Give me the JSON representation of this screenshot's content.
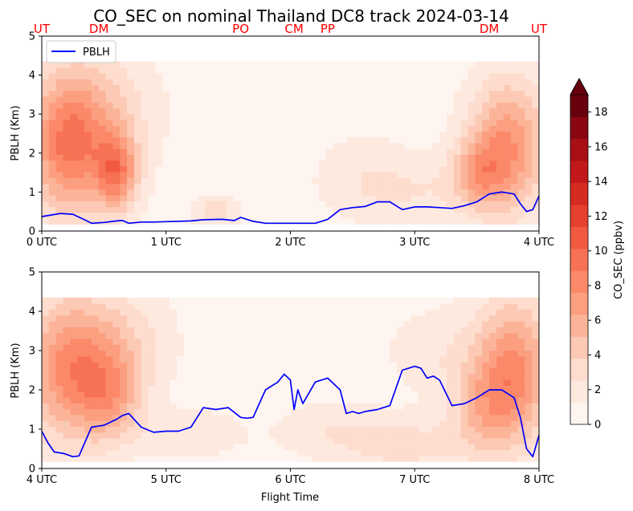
{
  "title": "CO_SEC on nominal Thailand DC8 track 2024-03-14",
  "colors": {
    "pblh_line": "#0000ff",
    "site_label": "#ff0000",
    "colormap": [
      "#fff5f0",
      "#fee9df",
      "#fedcce",
      "#fcc9b4",
      "#fcb499",
      "#fc9f81",
      "#fb8969",
      "#f77254",
      "#f15a40",
      "#e6402f",
      "#d52b21",
      "#c2181b",
      "#a81016",
      "#8a0712",
      "#67000d"
    ]
  },
  "chart_data": [
    {
      "type": "contour",
      "panel": "top",
      "ylabel": "PBLH (Km)",
      "xlabel": "",
      "xlim": [
        0,
        4
      ],
      "ylim": [
        0,
        5
      ],
      "x_ticks": [
        "0 UTC",
        "1 UTC",
        "2 UTC",
        "3 UTC",
        "4 UTC"
      ],
      "y_ticks": [
        "0",
        "1",
        "2",
        "3",
        "4",
        "5"
      ],
      "legend": {
        "position": "top-left",
        "entries": [
          "PBLH"
        ]
      },
      "site_labels": [
        {
          "label": "UT",
          "x": 0.0
        },
        {
          "label": "DM",
          "x": 0.46
        },
        {
          "label": "PO",
          "x": 1.6
        },
        {
          "label": "CM",
          "x": 2.03
        },
        {
          "label": "PP",
          "x": 2.3
        },
        {
          "label": "DM",
          "x": 3.6
        },
        {
          "label": "UT",
          "x": 4.0
        }
      ],
      "pblh": {
        "name": "PBLH",
        "x": [
          0,
          0.15,
          0.25,
          0.35,
          0.4,
          0.5,
          0.6,
          0.65,
          0.7,
          0.8,
          0.9,
          1.0,
          1.2,
          1.3,
          1.45,
          1.55,
          1.6,
          1.7,
          1.8,
          1.9,
          2.0,
          2.1,
          2.2,
          2.3,
          2.4,
          2.5,
          2.6,
          2.7,
          2.8,
          2.9,
          3.0,
          3.1,
          3.2,
          3.3,
          3.4,
          3.5,
          3.6,
          3.7,
          3.8,
          3.85,
          3.9,
          3.95,
          4.0
        ],
        "y": [
          0.37,
          0.45,
          0.43,
          0.28,
          0.2,
          0.22,
          0.26,
          0.27,
          0.2,
          0.23,
          0.23,
          0.24,
          0.26,
          0.29,
          0.3,
          0.27,
          0.35,
          0.25,
          0.2,
          0.2,
          0.2,
          0.2,
          0.2,
          0.3,
          0.55,
          0.6,
          0.63,
          0.75,
          0.75,
          0.55,
          0.62,
          0.62,
          0.6,
          0.58,
          0.65,
          0.75,
          0.95,
          1.0,
          0.95,
          0.7,
          0.5,
          0.55,
          0.9
        ]
      },
      "field_blobs": [
        {
          "x": 0.2,
          "y": 2.2,
          "sx": 0.22,
          "sy": 1.3,
          "amp": 7.5
        },
        {
          "x": 0.6,
          "y": 1.5,
          "sx": 0.12,
          "sy": 0.7,
          "amp": 7.0
        },
        {
          "x": 0.5,
          "y": 3.0,
          "sx": 0.3,
          "sy": 1.2,
          "amp": 3.0
        },
        {
          "x": 1.4,
          "y": 0.5,
          "sx": 0.12,
          "sy": 0.25,
          "amp": 3.0
        },
        {
          "x": 3.75,
          "y": 2.2,
          "sx": 0.22,
          "sy": 1.2,
          "amp": 7.0
        },
        {
          "x": 3.5,
          "y": 1.5,
          "sx": 0.15,
          "sy": 0.6,
          "amp": 4.0
        },
        {
          "x": 3.0,
          "y": 1.0,
          "sx": 0.4,
          "sy": 0.6,
          "amp": 1.6
        },
        {
          "x": 2.6,
          "y": 1.5,
          "sx": 0.3,
          "sy": 0.8,
          "amp": 1.2
        }
      ]
    },
    {
      "type": "contour",
      "panel": "bottom",
      "ylabel": "PBLH (Km)",
      "xlabel": "Flight Time",
      "xlim": [
        4,
        8
      ],
      "ylim": [
        0,
        5
      ],
      "x_ticks": [
        "4 UTC",
        "5 UTC",
        "6 UTC",
        "7 UTC",
        "8 UTC"
      ],
      "y_ticks": [
        "0",
        "1",
        "2",
        "3",
        "4",
        "5"
      ],
      "pblh": {
        "name": "PBLH",
        "x": [
          4.0,
          4.05,
          4.1,
          4.18,
          4.25,
          4.3,
          4.4,
          4.5,
          4.6,
          4.65,
          4.7,
          4.8,
          4.9,
          5.0,
          5.1,
          5.2,
          5.3,
          5.4,
          5.5,
          5.6,
          5.65,
          5.7,
          5.8,
          5.9,
          5.95,
          6.0,
          6.03,
          6.06,
          6.1,
          6.2,
          6.3,
          6.4,
          6.45,
          6.5,
          6.55,
          6.6,
          6.7,
          6.8,
          6.9,
          7.0,
          7.05,
          7.1,
          7.15,
          7.2,
          7.3,
          7.4,
          7.5,
          7.6,
          7.7,
          7.8,
          7.85,
          7.9,
          7.95,
          8.0
        ],
        "y": [
          0.95,
          0.65,
          0.42,
          0.38,
          0.3,
          0.32,
          1.05,
          1.1,
          1.25,
          1.35,
          1.4,
          1.05,
          0.92,
          0.95,
          0.95,
          1.05,
          1.55,
          1.5,
          1.55,
          1.3,
          1.28,
          1.3,
          2.0,
          2.2,
          2.4,
          2.25,
          1.5,
          2.0,
          1.65,
          2.2,
          2.3,
          2.0,
          1.4,
          1.45,
          1.4,
          1.45,
          1.5,
          1.6,
          2.5,
          2.6,
          2.55,
          2.3,
          2.35,
          2.25,
          1.6,
          1.65,
          1.8,
          2.0,
          2.0,
          1.8,
          1.3,
          0.5,
          0.3,
          0.85
        ]
      },
      "field_blobs": [
        {
          "x": 4.2,
          "y": 2.5,
          "sx": 0.25,
          "sy": 1.3,
          "amp": 6.5
        },
        {
          "x": 4.55,
          "y": 1.8,
          "sx": 0.18,
          "sy": 0.8,
          "amp": 4.5
        },
        {
          "x": 4.6,
          "y": 3.2,
          "sx": 0.3,
          "sy": 1.0,
          "amp": 3.0
        },
        {
          "x": 5.2,
          "y": 0.9,
          "sx": 0.3,
          "sy": 0.4,
          "amp": 1.8
        },
        {
          "x": 6.3,
          "y": 1.0,
          "sx": 0.3,
          "sy": 0.5,
          "amp": 1.5
        },
        {
          "x": 6.9,
          "y": 0.6,
          "sx": 0.35,
          "sy": 0.5,
          "amp": 2.5
        },
        {
          "x": 7.8,
          "y": 2.5,
          "sx": 0.22,
          "sy": 1.3,
          "amp": 7.0
        },
        {
          "x": 7.55,
          "y": 1.5,
          "sx": 0.2,
          "sy": 0.8,
          "amp": 3.5
        },
        {
          "x": 7.2,
          "y": 3.0,
          "sx": 0.3,
          "sy": 0.8,
          "amp": 1.5
        }
      ]
    }
  ],
  "colorbar": {
    "label": "CO_SEC (ppbv)",
    "vmin": 0,
    "vmax": 19,
    "levels": [
      0,
      1,
      2,
      3,
      4,
      5,
      6,
      7,
      8,
      9,
      10,
      11,
      12,
      13,
      14,
      15,
      16,
      17,
      18,
      19
    ],
    "ticks": [
      "0",
      "2",
      "4",
      "6",
      "8",
      "10",
      "12",
      "14",
      "16",
      "18"
    ],
    "extend": "max"
  }
}
